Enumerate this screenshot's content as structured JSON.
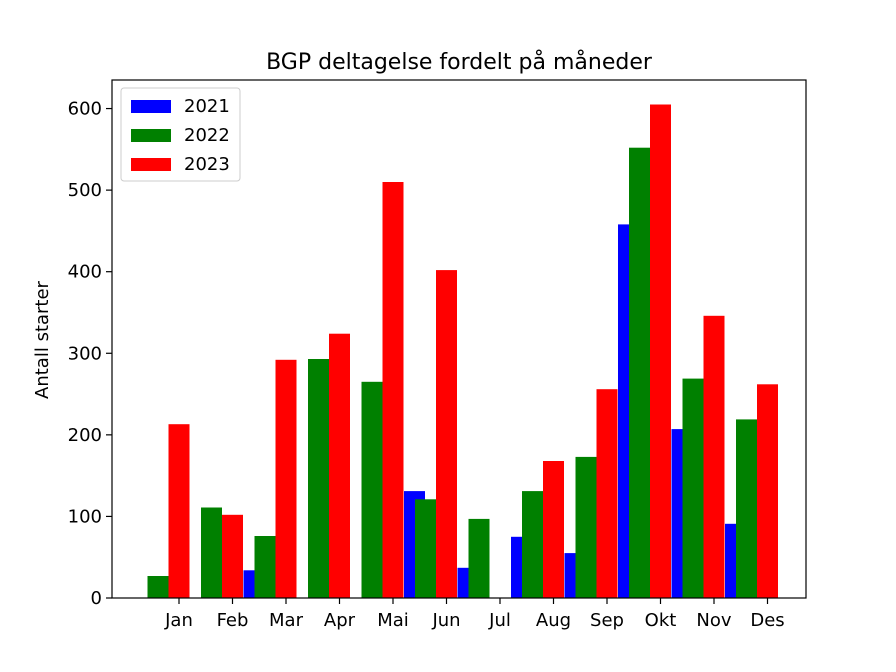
{
  "chart_data": {
    "type": "bar",
    "title": "BGP deltagelse fordelt på måneder",
    "xlabel": "",
    "ylabel": "Antall starter",
    "categories": [
      "Jan",
      "Feb",
      "Mar",
      "Apr",
      "Mai",
      "Jun",
      "Jul",
      "Aug",
      "Sep",
      "Okt",
      "Nov",
      "Des"
    ],
    "yticks": [
      0,
      100,
      200,
      300,
      400,
      500,
      600
    ],
    "ylim": [
      0,
      635
    ],
    "legend_position": "top-left",
    "grid": false,
    "series": [
      {
        "name": "2021",
        "color": "#0000ff",
        "values": [
          0,
          0,
          34,
          0,
          0,
          131,
          37,
          75,
          55,
          458,
          207,
          91
        ]
      },
      {
        "name": "2022",
        "color": "#008000",
        "values": [
          27,
          111,
          76,
          293,
          265,
          121,
          97,
          131,
          173,
          552,
          269,
          219
        ]
      },
      {
        "name": "2023",
        "color": "#ff0000",
        "values": [
          213,
          102,
          292,
          324,
          510,
          402,
          0,
          168,
          256,
          605,
          346,
          262
        ]
      }
    ]
  }
}
